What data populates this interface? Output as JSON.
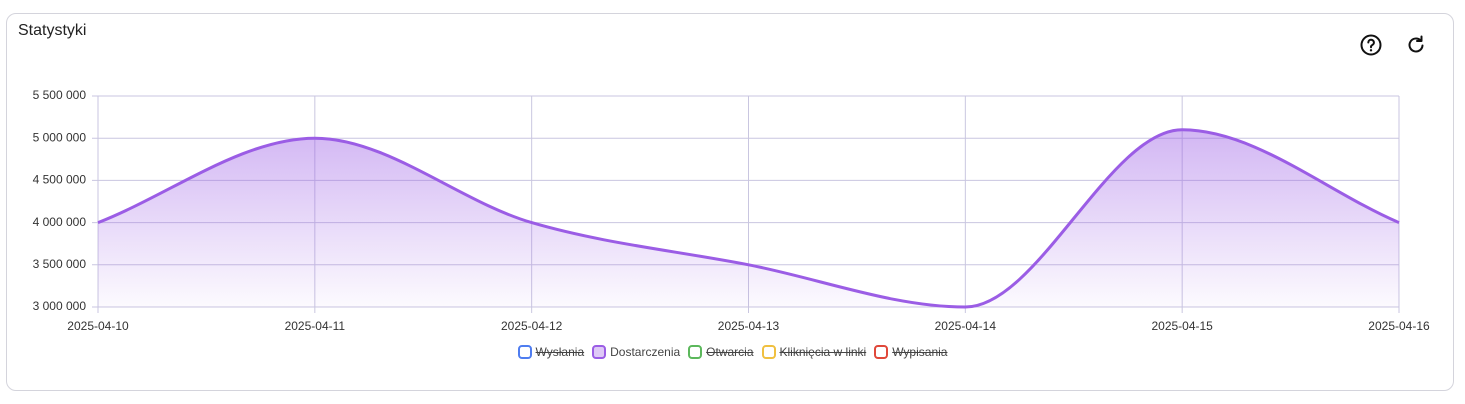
{
  "header": {
    "title": "Statystyki"
  },
  "chart_data": {
    "type": "line",
    "categories": [
      "2025-04-10",
      "2025-04-11",
      "2025-04-12",
      "2025-04-13",
      "2025-04-14",
      "2025-04-15",
      "2025-04-16"
    ],
    "series": [
      {
        "name": "Wysłania",
        "color": "#4f7df0",
        "hidden": true
      },
      {
        "name": "Dostarczenia",
        "color": "#9b5de5",
        "values": [
          4000000,
          5000000,
          4000000,
          3500000,
          3000000,
          5100000,
          4000000
        ]
      },
      {
        "name": "Otwarcia",
        "color": "#5cb85c",
        "hidden": true
      },
      {
        "name": "Kliknięcia w linki",
        "color": "#f0c040",
        "hidden": true
      },
      {
        "name": "Wypisania",
        "color": "#e0483a",
        "hidden": true
      }
    ],
    "ylim": [
      3000000,
      5500000
    ],
    "yticks": [
      {
        "value": 3000000,
        "label": "3 000 000"
      },
      {
        "value": 3500000,
        "label": "3 500 000"
      },
      {
        "value": 4000000,
        "label": "4 000 000"
      },
      {
        "value": 4500000,
        "label": "4 500 000"
      },
      {
        "value": 5000000,
        "label": "5 000 000"
      },
      {
        "value": 5500000,
        "label": "5 500 000"
      }
    ],
    "grid": true,
    "legend": "bottom"
  }
}
